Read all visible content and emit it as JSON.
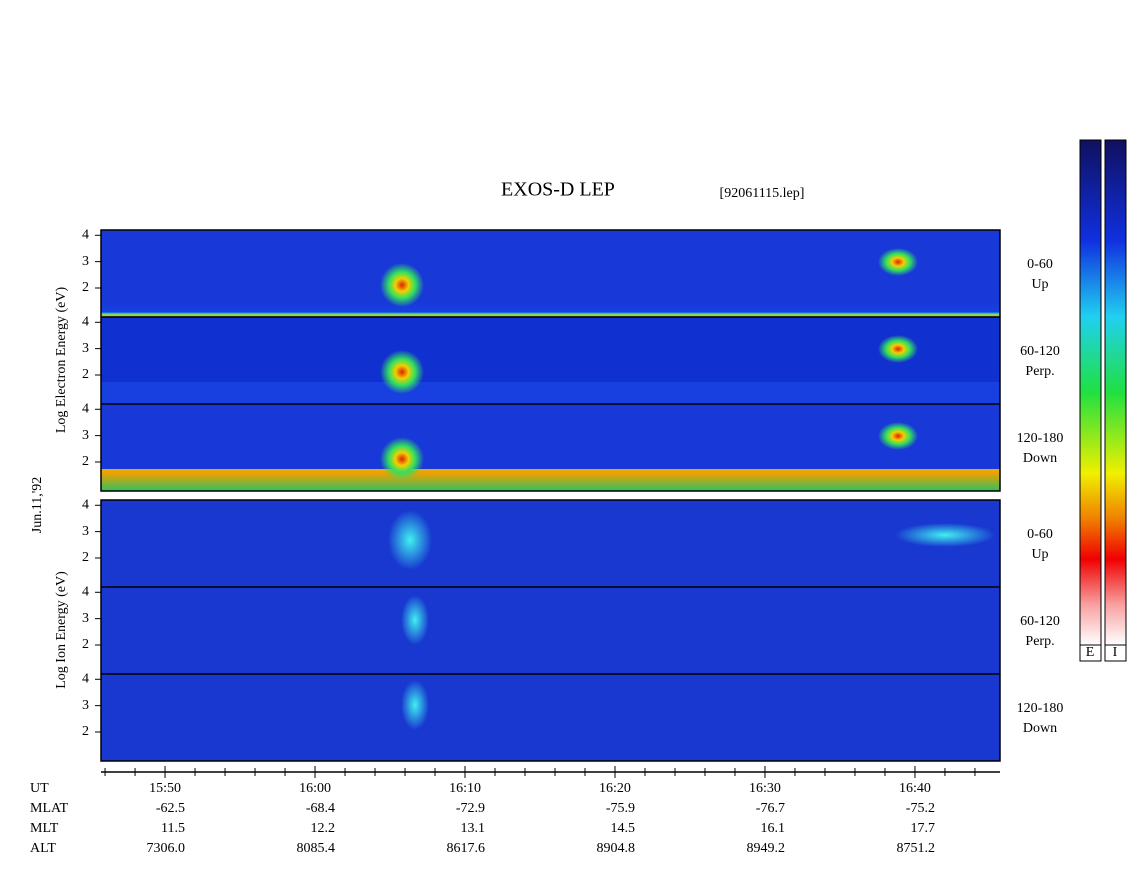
{
  "chart_data": {
    "type": "spectrogram",
    "title": "EXOS-D LEP",
    "file_label": "[92061115.lep]",
    "date_label": "Jun.11,'92",
    "electron_ylabel": "Log Electron Energy (eV)",
    "ion_ylabel": "Log Ion Energy (eV)",
    "electron_panels": [
      {
        "angle": "0-60",
        "direction": "Up"
      },
      {
        "angle": "60-120",
        "direction": "Perp."
      },
      {
        "angle": "120-180",
        "direction": "Down"
      }
    ],
    "ion_panels": [
      {
        "angle": "0-60",
        "direction": "Up"
      },
      {
        "angle": "60-120",
        "direction": "Perp."
      },
      {
        "angle": "120-180",
        "direction": "Down"
      }
    ],
    "ylim": [
      0.9,
      4.2
    ],
    "yticks": [
      2,
      3,
      4
    ],
    "xlim": [
      945.73,
      1005.67
    ],
    "xticks": [
      {
        "value": 950,
        "label": "15:50"
      },
      {
        "value": 960,
        "label": "16:00"
      },
      {
        "value": 970,
        "label": "16:10"
      },
      {
        "value": 980,
        "label": "16:20"
      },
      {
        "value": 990,
        "label": "16:30"
      },
      {
        "value": 1000,
        "label": "16:40"
      }
    ],
    "xminorticks": [
      946,
      948,
      952,
      954,
      956,
      958,
      962,
      964,
      966,
      968,
      972,
      974,
      976,
      978,
      982,
      984,
      986,
      988,
      992,
      994,
      996,
      998,
      1002,
      1004
    ],
    "orbit_rows": [
      {
        "name": "UT"
      },
      {
        "name": "MLAT",
        "values": [
          "-62.5",
          "-68.4",
          "-72.9",
          "-75.9",
          "-76.7",
          "-75.2"
        ]
      },
      {
        "name": "MLT",
        "values": [
          "11.5",
          "12.2",
          "13.1",
          "14.5",
          "16.1",
          "17.7"
        ]
      },
      {
        "name": "ALT",
        "values": [
          "7306.0",
          "8085.4",
          "8617.6",
          "8904.8",
          "8949.2",
          "8751.2"
        ]
      }
    ],
    "colorbar_labels": [
      "E",
      "I"
    ]
  }
}
